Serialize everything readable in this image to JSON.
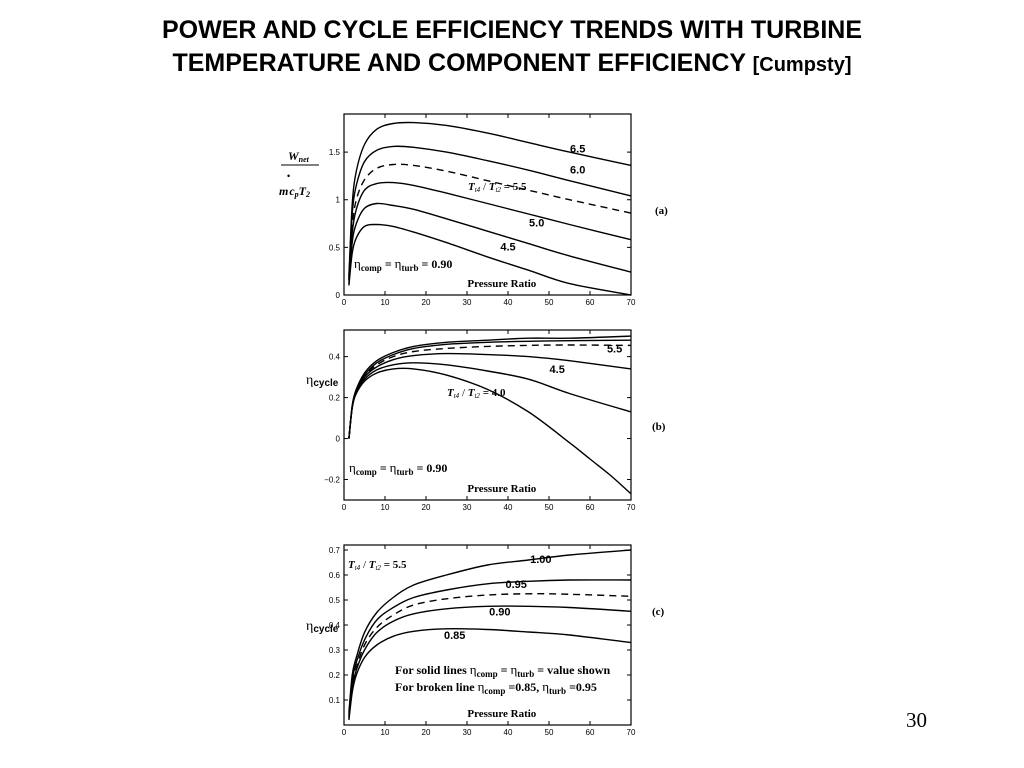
{
  "title": {
    "line1": "POWER AND CYCLE EFFICIENCY TRENDS  WITH TURBINE",
    "line2": "TEMPERATURE AND COMPONENT EFFICIENCY",
    "source": "[Cumpsty]"
  },
  "page_number": "30",
  "chart_data": [
    {
      "type": "line",
      "panel_label": "(a)",
      "xlabel": "Pressure Ratio",
      "ylabel": {
        "w": "W",
        "w_sub": "net",
        "dot": "•",
        "m": "m",
        "c": "c",
        "c_sub": "p",
        "t": "T",
        "t_sub": "2"
      },
      "xlim": [
        0,
        70
      ],
      "ylim": [
        0,
        1.9
      ],
      "xticks": [
        "0",
        "10",
        "20",
        "30",
        "40",
        "50",
        "60",
        "70"
      ],
      "yticks": [
        {
          "v": 0,
          "label": "0"
        },
        {
          "v": 0.5,
          "label": "0.5"
        },
        {
          "v": 1,
          "label": "1"
        },
        {
          "v": 1.5,
          "label": "1.5"
        }
      ],
      "annotation": {
        "tt": "T",
        "tt_sub": "t4",
        "sep": " / ",
        "t2": "T",
        "t2_sub": "t2",
        "val": " = 5.5"
      },
      "efficiency_note": {
        "eta1": "η",
        "s1": "comp",
        "eq": " = ",
        "eta2": "η",
        "s2": "turb",
        "val": " = 0.90"
      },
      "series": [
        {
          "name": "6.5",
          "style": "solid",
          "x": [
            1.2,
            2,
            3,
            5,
            8,
            12,
            17,
            25,
            35,
            45,
            55,
            70
          ],
          "values": [
            0.2,
            0.95,
            1.3,
            1.58,
            1.74,
            1.8,
            1.81,
            1.78,
            1.7,
            1.6,
            1.5,
            1.36
          ]
        },
        {
          "name": "6.0",
          "style": "solid",
          "x": [
            1.2,
            2,
            3,
            5,
            8,
            12,
            17,
            25,
            35,
            45,
            55,
            70
          ],
          "values": [
            0.18,
            0.85,
            1.15,
            1.4,
            1.52,
            1.56,
            1.55,
            1.5,
            1.41,
            1.31,
            1.2,
            1.04
          ]
        },
        {
          "name": "",
          "style": "dashed",
          "x": [
            1.2,
            2,
            3,
            5,
            8,
            12,
            17,
            25,
            35,
            45,
            55,
            70
          ],
          "values": [
            0.16,
            0.72,
            1.0,
            1.21,
            1.33,
            1.37,
            1.36,
            1.3,
            1.2,
            1.1,
            1.0,
            0.86
          ]
        },
        {
          "name": "5.5",
          "style": "solid",
          "x": [
            1.2,
            2,
            3,
            5,
            8,
            12,
            17,
            25,
            35,
            45,
            55,
            70
          ],
          "values": [
            0.15,
            0.65,
            0.9,
            1.1,
            1.17,
            1.18,
            1.15,
            1.07,
            0.96,
            0.85,
            0.74,
            0.58
          ]
        },
        {
          "name": "5.0",
          "style": "solid",
          "x": [
            1.2,
            2,
            3,
            5,
            8,
            12,
            17,
            25,
            35,
            45,
            55,
            70
          ],
          "values": [
            0.12,
            0.55,
            0.75,
            0.91,
            0.96,
            0.94,
            0.9,
            0.8,
            0.67,
            0.54,
            0.41,
            0.24
          ]
        },
        {
          "name": "4.5",
          "style": "solid",
          "x": [
            1.2,
            2,
            3,
            5,
            8,
            12,
            17,
            25,
            35,
            45,
            55,
            70
          ],
          "values": [
            0.1,
            0.44,
            0.6,
            0.72,
            0.74,
            0.72,
            0.66,
            0.55,
            0.4,
            0.26,
            0.12,
            0.0
          ]
        }
      ],
      "series_labels": [
        {
          "text": "6.5",
          "x": 57,
          "y": 1.54
        },
        {
          "text": "6.0",
          "x": 57,
          "y": 1.32
        },
        {
          "text": "5.0",
          "x": 47,
          "y": 0.76
        },
        {
          "text": "4.5",
          "x": 40,
          "y": 0.51
        }
      ]
    },
    {
      "type": "line",
      "panel_label": "(b)",
      "xlabel": "Pressure Ratio",
      "ylabel": {
        "eta": "η",
        "sub": "cycle"
      },
      "xlim": [
        0,
        70
      ],
      "ylim": [
        -0.3,
        0.53
      ],
      "xticks": [
        "0",
        "10",
        "20",
        "30",
        "40",
        "50",
        "60",
        "70"
      ],
      "yticks": [
        {
          "v": -0.2,
          "label": "−0.2"
        },
        {
          "v": 0,
          "label": "0"
        },
        {
          "v": 0.2,
          "label": "0.2"
        },
        {
          "v": 0.4,
          "label": "0.4"
        }
      ],
      "annotation": {
        "tt": "T",
        "tt_sub": "t4",
        "sep": " / ",
        "t2": "T",
        "t2_sub": "t2",
        "val": " = 4.0"
      },
      "efficiency_note": {
        "eta1": "η",
        "s1": "comp",
        "eq": " = ",
        "eta2": "η",
        "s2": "turb",
        "val": " = 0.90"
      },
      "series": [
        {
          "name": "",
          "style": "solid",
          "x": [
            1.2,
            2,
            3,
            5,
            8,
            12,
            17,
            25,
            35,
            45,
            55,
            70
          ],
          "values": [
            0.0,
            0.16,
            0.24,
            0.32,
            0.38,
            0.42,
            0.45,
            0.47,
            0.48,
            0.49,
            0.49,
            0.5
          ]
        },
        {
          "name": "",
          "style": "solid",
          "x": [
            1.2,
            2,
            3,
            5,
            8,
            12,
            17,
            25,
            35,
            45,
            55,
            70
          ],
          "values": [
            0.0,
            0.16,
            0.24,
            0.31,
            0.37,
            0.41,
            0.44,
            0.46,
            0.47,
            0.475,
            0.478,
            0.48
          ]
        },
        {
          "name": "",
          "style": "dashed",
          "x": [
            1.2,
            2,
            3,
            5,
            8,
            12,
            17,
            25,
            35,
            45,
            55,
            70
          ],
          "values": [
            0.0,
            0.155,
            0.235,
            0.305,
            0.36,
            0.4,
            0.425,
            0.44,
            0.45,
            0.455,
            0.457,
            0.455
          ]
        },
        {
          "name": "5.5",
          "style": "solid",
          "x": [
            1.2,
            2,
            3,
            5,
            8,
            12,
            17,
            25,
            35,
            45,
            55,
            70
          ],
          "values": [
            0.0,
            0.15,
            0.23,
            0.3,
            0.35,
            0.385,
            0.405,
            0.415,
            0.41,
            0.4,
            0.38,
            0.34
          ]
        },
        {
          "name": "4.5",
          "style": "solid",
          "x": [
            1.2,
            2,
            3,
            5,
            8,
            12,
            17,
            25,
            35,
            45,
            55,
            70
          ],
          "values": [
            0.0,
            0.15,
            0.23,
            0.29,
            0.335,
            0.36,
            0.37,
            0.36,
            0.33,
            0.29,
            0.22,
            0.13
          ]
        },
        {
          "name": "4.0",
          "style": "solid",
          "x": [
            1.2,
            2,
            3,
            5,
            8,
            12,
            17,
            25,
            35,
            45,
            55,
            60,
            65,
            70
          ],
          "values": [
            0.0,
            0.15,
            0.22,
            0.28,
            0.32,
            0.34,
            0.34,
            0.31,
            0.24,
            0.13,
            -0.02,
            -0.1,
            -0.18,
            -0.27
          ]
        }
      ],
      "series_labels": [
        {
          "text": "5.5",
          "x": 66,
          "y": 0.44
        },
        {
          "text": "4.5",
          "x": 52,
          "y": 0.34
        }
      ]
    },
    {
      "type": "line",
      "panel_label": "(c)",
      "xlabel": "Pressure Ratio",
      "ylabel": {
        "eta": "η",
        "sub": "cycle"
      },
      "xlim": [
        0,
        70
      ],
      "ylim": [
        0,
        0.72
      ],
      "xticks": [
        "0",
        "10",
        "20",
        "30",
        "40",
        "50",
        "60",
        "70"
      ],
      "yticks": [
        {
          "v": 0.1,
          "label": "0.1"
        },
        {
          "v": 0.2,
          "label": "0.2"
        },
        {
          "v": 0.3,
          "label": "0.3"
        },
        {
          "v": 0.4,
          "label": "0.4"
        },
        {
          "v": 0.5,
          "label": "0.5"
        },
        {
          "v": 0.6,
          "label": "0.6"
        },
        {
          "v": 0.7,
          "label": "0.7"
        }
      ],
      "annotation": {
        "tt": "T",
        "tt_sub": "t4",
        "sep": " / ",
        "t2": "T",
        "t2_sub": "t2",
        "val": " = 5.5"
      },
      "notes": [
        {
          "prefix": "For solid lines  ",
          "eta1": "η",
          "s1": "comp",
          "eq": " = ",
          "eta2": "η",
          "s2": "turb",
          "val": " = value shown"
        },
        {
          "prefix": "For broken line ",
          "eta1": "η",
          "s1": "comp",
          "eq": " =0.85, ",
          "eta2": "η",
          "s2": "turb",
          "val": " =0.95"
        }
      ],
      "series": [
        {
          "name": "1.00",
          "style": "solid",
          "x": [
            1.2,
            2,
            3,
            5,
            8,
            12,
            17,
            25,
            35,
            45,
            55,
            70
          ],
          "values": [
            0.05,
            0.2,
            0.27,
            0.37,
            0.45,
            0.51,
            0.56,
            0.6,
            0.64,
            0.66,
            0.68,
            0.7
          ]
        },
        {
          "name": "0.95",
          "style": "solid",
          "x": [
            1.2,
            2,
            3,
            5,
            8,
            12,
            17,
            25,
            35,
            45,
            55,
            70
          ],
          "values": [
            0.04,
            0.18,
            0.25,
            0.34,
            0.42,
            0.47,
            0.51,
            0.54,
            0.565,
            0.575,
            0.58,
            0.58
          ]
        },
        {
          "name": "",
          "style": "dashed",
          "x": [
            1.2,
            2,
            3,
            5,
            8,
            12,
            17,
            25,
            35,
            45,
            55,
            70
          ],
          "values": [
            0.03,
            0.16,
            0.23,
            0.32,
            0.39,
            0.44,
            0.48,
            0.505,
            0.52,
            0.525,
            0.523,
            0.515
          ]
        },
        {
          "name": "0.90",
          "style": "solid",
          "x": [
            1.2,
            2,
            3,
            5,
            8,
            12,
            17,
            25,
            35,
            45,
            55,
            70
          ],
          "values": [
            0.03,
            0.15,
            0.22,
            0.3,
            0.37,
            0.415,
            0.445,
            0.465,
            0.475,
            0.475,
            0.47,
            0.455
          ]
        },
        {
          "name": "0.85",
          "style": "solid",
          "x": [
            1.2,
            2,
            3,
            5,
            8,
            12,
            17,
            25,
            35,
            45,
            55,
            70
          ],
          "values": [
            0.02,
            0.13,
            0.2,
            0.27,
            0.32,
            0.355,
            0.375,
            0.385,
            0.382,
            0.372,
            0.36,
            0.33
          ]
        }
      ],
      "series_labels": [
        {
          "text": "1.00",
          "x": 48,
          "y": 0.665
        },
        {
          "text": "0.95",
          "x": 42,
          "y": 0.565
        },
        {
          "text": "0.90",
          "x": 38,
          "y": 0.455
        },
        {
          "text": "0.85",
          "x": 27,
          "y": 0.36
        }
      ]
    }
  ]
}
